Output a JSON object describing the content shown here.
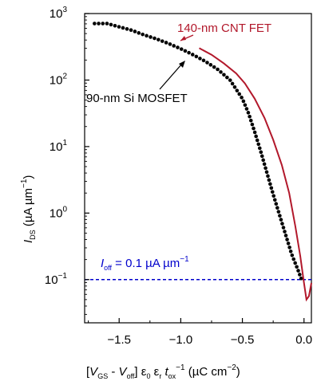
{
  "chart_data": {
    "type": "line",
    "xlabel": "[V_GS - V_off] ε0 εr t_ox^−1 (µC cm^−2)",
    "ylabel": "I_DS (µA µm^−1)",
    "xlim": [
      -1.78,
      0.06
    ],
    "ylim_log10": [
      -1.65,
      3.0
    ],
    "y_scale": "log",
    "x_ticks": [
      -1.5,
      -1.0,
      -0.5,
      0.0
    ],
    "x_tick_labels": [
      "−1.5",
      "−1.0",
      "−0.5",
      "0.0"
    ],
    "y_ticks_log10": [
      -1,
      0,
      1,
      2,
      3
    ],
    "y_tick_labels": [
      {
        "base": "10",
        "exp": "−1"
      },
      {
        "base": "10",
        "exp": "0"
      },
      {
        "base": "10",
        "exp": "1"
      },
      {
        "base": "10",
        "exp": "2"
      },
      {
        "base": "10",
        "exp": "3"
      }
    ],
    "axis_title_x": {
      "open": "[",
      "v": "V",
      "gs": "GS",
      "minus": " - ",
      "off": "off",
      "close": "] ε",
      "zero": "0",
      "eps_r": " ε",
      "r": "r",
      "t": " t",
      "ox": "ox",
      "exp": "−1",
      "unit": " (µC cm",
      "unit_exp": "−2",
      "unit_close": ")"
    },
    "axis_title_y": {
      "i": "I",
      "ds": "DS",
      "unit": " (µA µm",
      "exp": "−1",
      "close": ")"
    },
    "series": [
      {
        "name": "90-nm Si MOSFET",
        "style": "dots",
        "color": "#000000",
        "points": [
          [
            -1.7,
            2.85
          ],
          [
            -1.6,
            2.85
          ],
          [
            -1.5,
            2.8
          ],
          [
            -1.4,
            2.75
          ],
          [
            -1.3,
            2.68
          ],
          [
            -1.2,
            2.62
          ],
          [
            -1.1,
            2.55
          ],
          [
            -1.0,
            2.47
          ],
          [
            -0.9,
            2.38
          ],
          [
            -0.8,
            2.28
          ],
          [
            -0.7,
            2.16
          ],
          [
            -0.6,
            2.0
          ],
          [
            -0.5,
            1.72
          ],
          [
            -0.45,
            1.5
          ],
          [
            -0.4,
            1.22
          ],
          [
            -0.35,
            0.92
          ],
          [
            -0.3,
            0.6
          ],
          [
            -0.25,
            0.28
          ],
          [
            -0.2,
            -0.02
          ],
          [
            -0.15,
            -0.32
          ],
          [
            -0.1,
            -0.62
          ],
          [
            -0.05,
            -0.85
          ],
          [
            -0.02,
            -1.0
          ]
        ]
      },
      {
        "name": "140-nm CNT FET",
        "style": "line",
        "color": "#b2182b",
        "points": [
          [
            -0.85,
            2.48
          ],
          [
            -0.75,
            2.38
          ],
          [
            -0.65,
            2.25
          ],
          [
            -0.55,
            2.1
          ],
          [
            -0.48,
            1.95
          ],
          [
            -0.4,
            1.72
          ],
          [
            -0.32,
            1.43
          ],
          [
            -0.25,
            1.1
          ],
          [
            -0.18,
            0.72
          ],
          [
            -0.12,
            0.3
          ],
          [
            -0.07,
            -0.2
          ],
          [
            -0.03,
            -0.65
          ],
          [
            0.0,
            -1.05
          ],
          [
            0.02,
            -1.3
          ],
          [
            0.04,
            -1.25
          ],
          [
            0.06,
            -1.05
          ]
        ]
      }
    ],
    "annotations": {
      "si_label": "90-nm Si MOSFET",
      "cnt_label": "140-nm CNT FET",
      "ioff_text": {
        "i": "I",
        "sub": "off",
        "rest": " = 0.1 µA µm",
        "exp": "−1"
      },
      "ioff_value_log10": -1,
      "ioff_color": "#0000cc"
    }
  }
}
